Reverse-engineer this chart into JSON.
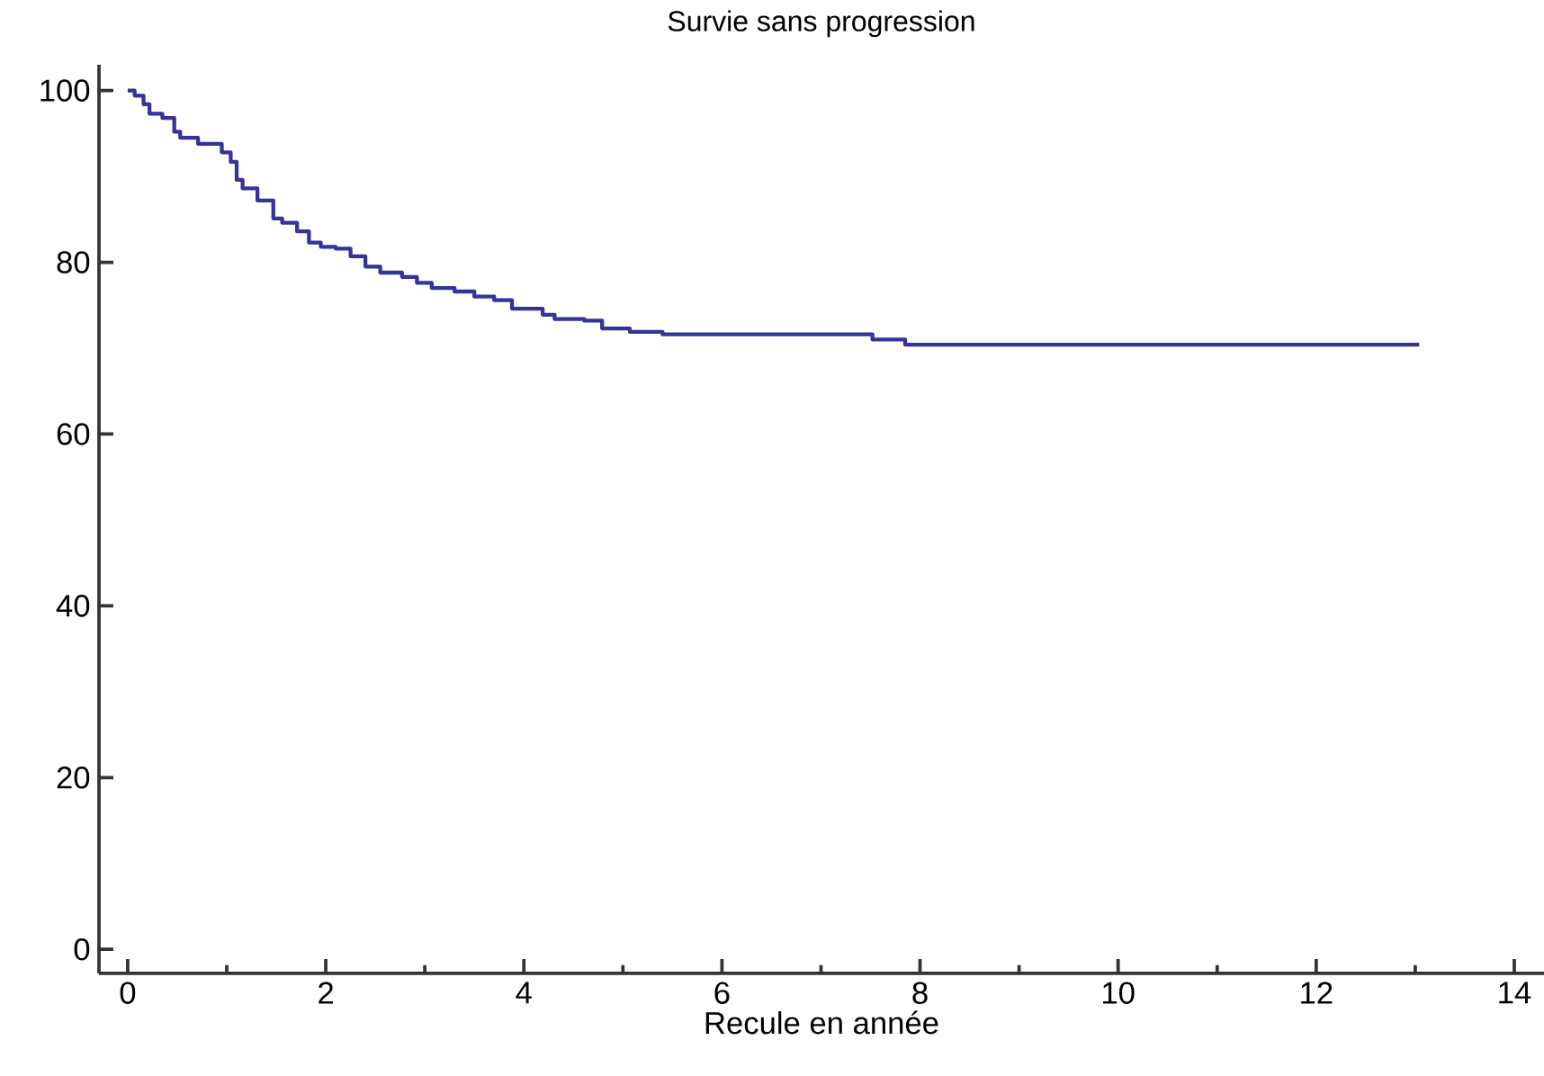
{
  "chart_data": {
    "type": "step",
    "title": "Survie sans progression",
    "xlabel": "Recule en année",
    "xlim": [
      -0.29,
      14.3
    ],
    "ylim": [
      -2.8,
      103
    ],
    "xticks": [
      0,
      2,
      4,
      6,
      8,
      10,
      12,
      14
    ],
    "yticks": [
      0,
      20,
      40,
      60,
      80,
      100
    ],
    "x": [
      0,
      0.07,
      0.16,
      0.22,
      0.35,
      0.47,
      0.53,
      0.71,
      0.95,
      1.04,
      1.1,
      1.16,
      1.31,
      1.47,
      1.56,
      1.71,
      1.83,
      1.95,
      2.1,
      2.25,
      2.4,
      2.55,
      2.77,
      2.92,
      3.07,
      3.3,
      3.5,
      3.7,
      3.88,
      4.19,
      4.31,
      4.61,
      4.79,
      5.07,
      5.4,
      7.52,
      7.85,
      13.04
    ],
    "series": [
      {
        "color": "#33339a",
        "values": [
          100,
          99.4,
          98.4,
          97.3,
          96.8,
          95.2,
          94.5,
          93.8,
          92.8,
          91.7,
          89.6,
          88.6,
          87.2,
          85.1,
          84.6,
          83.6,
          82.3,
          81.8,
          81.6,
          80.7,
          79.5,
          78.8,
          78.3,
          77.6,
          77.0,
          76.6,
          76.0,
          75.6,
          74.6,
          73.9,
          73.4,
          73.2,
          72.3,
          71.9,
          71.6,
          71.0,
          70.4,
          70.4
        ]
      }
    ]
  }
}
